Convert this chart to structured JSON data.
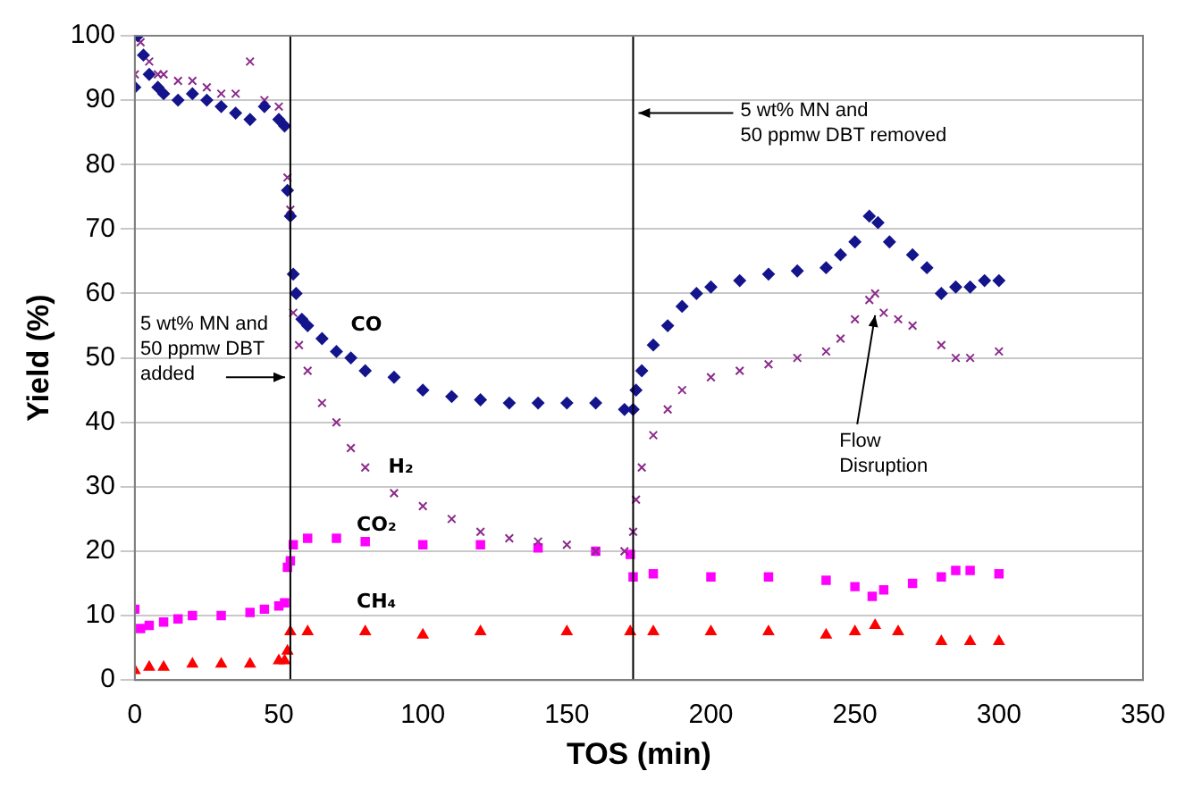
{
  "chart_data": {
    "type": "scatter",
    "xlabel": "TOS (min)",
    "ylabel": "Yield (%)",
    "xlim": [
      0,
      350
    ],
    "xticks": [
      0,
      50,
      100,
      150,
      200,
      250,
      300,
      350
    ],
    "ylim": [
      0,
      100
    ],
    "yticks": [
      0,
      10,
      20,
      30,
      40,
      50,
      60,
      70,
      80,
      90,
      100
    ],
    "grid": "y",
    "legend": false,
    "series": [
      {
        "name": "CO",
        "color": "#14148c",
        "marker": "diamond",
        "x": [
          0,
          1,
          3,
          5,
          8,
          10,
          15,
          20,
          25,
          30,
          35,
          40,
          45,
          50,
          52,
          53,
          54,
          55,
          56,
          58,
          60,
          65,
          70,
          75,
          80,
          90,
          100,
          110,
          120,
          130,
          140,
          150,
          160,
          170,
          172,
          173,
          174,
          176,
          180,
          185,
          190,
          195,
          200,
          210,
          220,
          230,
          240,
          245,
          250,
          255,
          258,
          262,
          270,
          275,
          280,
          285,
          290,
          295,
          300
        ],
        "values": [
          92,
          100,
          97,
          94,
          92,
          91,
          90,
          91,
          90,
          89,
          88,
          87,
          89,
          87,
          86,
          76,
          72,
          63,
          60,
          56,
          55,
          53,
          51,
          50,
          48,
          47,
          45,
          44,
          43.5,
          43,
          43,
          43,
          43,
          42,
          null,
          42,
          45,
          48,
          52,
          55,
          58,
          60,
          61,
          62,
          63,
          63.5,
          64,
          66,
          68,
          72,
          71,
          68,
          66,
          64,
          60,
          61,
          61,
          62,
          62
        ]
      },
      {
        "name": "H₂",
        "color": "#8b2a8b",
        "marker": "cross",
        "x": [
          0,
          2,
          5,
          8,
          10,
          15,
          20,
          25,
          30,
          35,
          40,
          45,
          50,
          52,
          53,
          54,
          55,
          57,
          60,
          65,
          70,
          75,
          80,
          90,
          100,
          110,
          120,
          130,
          140,
          150,
          160,
          170,
          173,
          174,
          176,
          180,
          185,
          190,
          200,
          210,
          220,
          230,
          240,
          245,
          250,
          255,
          257,
          260,
          265,
          270,
          280,
          285,
          290,
          300
        ],
        "values": [
          94,
          99,
          96,
          94,
          94,
          93,
          93,
          92,
          91,
          91,
          96,
          90,
          89,
          null,
          78,
          73,
          57,
          52,
          48,
          43,
          40,
          36,
          33,
          29,
          27,
          25,
          23,
          22,
          21.5,
          21,
          20,
          20,
          23,
          28,
          33,
          38,
          42,
          45,
          47,
          48,
          49,
          50,
          51,
          53,
          56,
          59,
          60,
          57,
          56,
          55,
          52,
          50,
          50,
          51
        ]
      },
      {
        "name": "CO₂",
        "color": "#ff00ff",
        "marker": "square",
        "x": [
          0,
          2,
          5,
          10,
          15,
          20,
          30,
          40,
          45,
          50,
          52,
          53,
          54,
          55,
          60,
          70,
          80,
          100,
          120,
          140,
          160,
          172,
          173,
          180,
          200,
          220,
          240,
          250,
          256,
          260,
          270,
          280,
          285,
          290,
          300
        ],
        "values": [
          11,
          8,
          8.5,
          9,
          9.5,
          10,
          10,
          10.5,
          11,
          11.5,
          12,
          17.5,
          18.5,
          21,
          22,
          22,
          21.5,
          21,
          21,
          20.5,
          20,
          19.5,
          16,
          16.5,
          16,
          16,
          15.5,
          14.5,
          13,
          14,
          15,
          16,
          17,
          17,
          16.5
        ]
      },
      {
        "name": "CH₄",
        "color": "#ff0000",
        "marker": "triangle",
        "x": [
          0,
          5,
          10,
          20,
          30,
          40,
          50,
          52,
          53,
          54,
          60,
          80,
          100,
          120,
          150,
          172,
          180,
          200,
          220,
          240,
          250,
          257,
          265,
          280,
          290,
          300
        ],
        "values": [
          1.5,
          2,
          2,
          2.5,
          2.5,
          2.5,
          3,
          3,
          4.5,
          7.5,
          7.5,
          7.5,
          7,
          7.5,
          7.5,
          7.5,
          7.5,
          7.5,
          7.5,
          7,
          7.5,
          8.5,
          7.5,
          6,
          6,
          6
        ]
      }
    ],
    "ref_lines": [
      {
        "axis": "x",
        "value": 54,
        "color": "#000000"
      },
      {
        "axis": "x",
        "value": 173,
        "color": "#000000"
      }
    ],
    "annotations": [
      {
        "text": "5 wt% MN and\n50 ppmw DBT\nadded",
        "x": 54,
        "y": 47
      },
      {
        "text": "5 wt% MN and\n50 ppmw DBT removed",
        "x": 173,
        "y": 88
      },
      {
        "text": "Flow\nDisruption",
        "x": 257,
        "y": 58
      }
    ]
  }
}
